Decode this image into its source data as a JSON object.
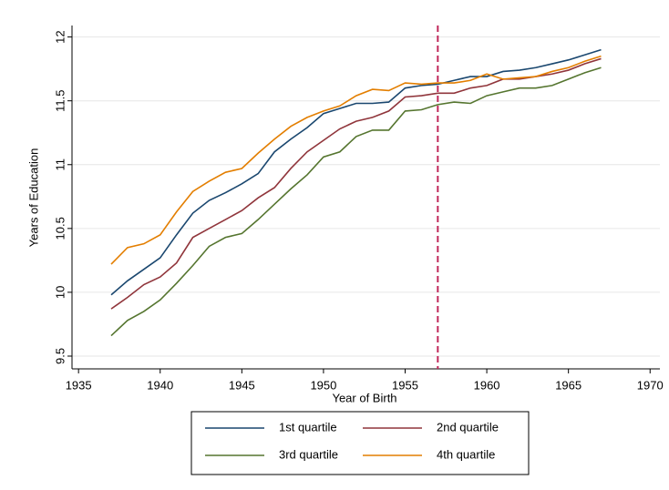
{
  "chart_data": {
    "type": "line",
    "x_label": "Year of Birth",
    "y_label": "Years of Education",
    "x": [
      1937,
      1938,
      1939,
      1940,
      1941,
      1942,
      1943,
      1944,
      1945,
      1946,
      1947,
      1948,
      1949,
      1950,
      1951,
      1952,
      1953,
      1954,
      1955,
      1956,
      1957,
      1958,
      1959,
      1960,
      1961,
      1962,
      1963,
      1964,
      1965,
      1966,
      1967
    ],
    "series": [
      {
        "name": "1st quartile",
        "color": "#1a476f",
        "values": [
          9.98,
          10.09,
          10.18,
          10.27,
          10.45,
          10.62,
          10.72,
          10.78,
          10.85,
          10.93,
          11.1,
          11.2,
          11.29,
          11.4,
          11.44,
          11.48,
          11.48,
          11.49,
          11.6,
          11.62,
          11.63,
          11.66,
          11.69,
          11.69,
          11.73,
          11.74,
          11.76,
          11.79,
          11.82,
          11.86,
          11.9
        ]
      },
      {
        "name": "2nd quartile",
        "color": "#90353b",
        "values": [
          9.87,
          9.96,
          10.06,
          10.12,
          10.23,
          10.43,
          10.5,
          10.57,
          10.64,
          10.74,
          10.82,
          10.97,
          11.1,
          11.19,
          11.28,
          11.34,
          11.37,
          11.42,
          11.53,
          11.54,
          11.56,
          11.56,
          11.6,
          11.62,
          11.67,
          11.67,
          11.69,
          11.71,
          11.74,
          11.79,
          11.83
        ]
      },
      {
        "name": "3rd quartile",
        "color": "#55752f",
        "values": [
          9.66,
          9.78,
          9.85,
          9.94,
          10.07,
          10.21,
          10.36,
          10.43,
          10.46,
          10.57,
          10.69,
          10.81,
          10.92,
          11.06,
          11.1,
          11.22,
          11.27,
          11.27,
          11.42,
          11.43,
          11.47,
          11.49,
          11.48,
          11.54,
          11.57,
          11.6,
          11.6,
          11.62,
          11.67,
          11.72,
          11.76
        ]
      },
      {
        "name": "4th quartile",
        "color": "#e37e00",
        "values": [
          10.22,
          10.35,
          10.38,
          10.45,
          10.63,
          10.79,
          10.87,
          10.94,
          10.97,
          11.09,
          11.2,
          11.3,
          11.37,
          11.42,
          11.46,
          11.54,
          11.59,
          11.58,
          11.64,
          11.63,
          11.64,
          11.64,
          11.66,
          11.71,
          11.67,
          11.68,
          11.69,
          11.73,
          11.76,
          11.81,
          11.85
        ]
      }
    ],
    "xlim": [
      1934.6,
      1970.6
    ],
    "xticks": [
      1935,
      1940,
      1945,
      1950,
      1955,
      1960,
      1965,
      1970
    ],
    "ylim": [
      9.4,
      12.09
    ],
    "yticks": [
      9.5,
      10,
      10.5,
      11,
      11.5,
      12
    ],
    "grid": true,
    "vline": 1957,
    "vline_color": "#c0285a",
    "legend": "bottom"
  }
}
